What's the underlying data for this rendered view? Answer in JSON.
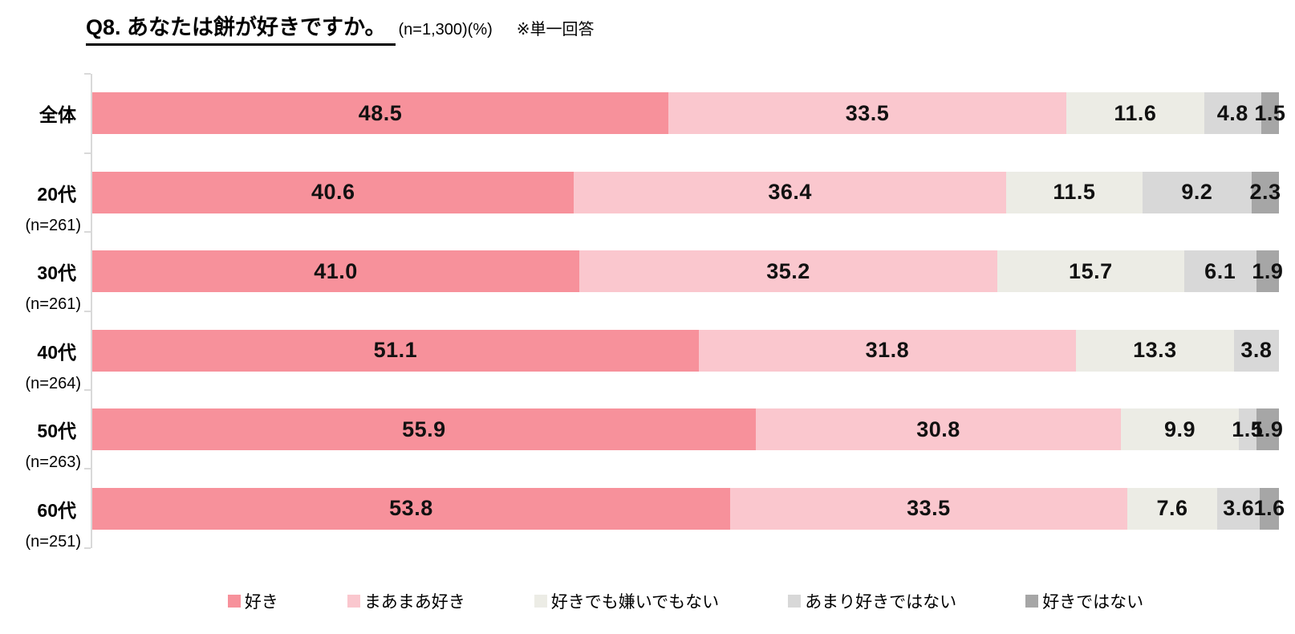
{
  "header": {
    "title": "Q8. あなたは餅が好きですか。",
    "sample": "(n=1,300)(%)",
    "note": "※単一回答"
  },
  "chart_data": {
    "type": "bar",
    "orientation": "horizontal",
    "stacked": true,
    "unit": "%",
    "xlim": [
      0,
      100
    ],
    "grid": false,
    "legend_position": "bottom",
    "value_labels": "centered on each segment, one decimal, hidden when 0",
    "axis_color": "#D9D9D9",
    "categories": [
      {
        "label": "全体",
        "n": ""
      },
      {
        "label": "20代",
        "n": "(n=261)"
      },
      {
        "label": "30代",
        "n": "(n=261)"
      },
      {
        "label": "40代",
        "n": "(n=264)"
      },
      {
        "label": "50代",
        "n": "(n=263)"
      },
      {
        "label": "60代",
        "n": "(n=251)"
      }
    ],
    "series": [
      {
        "name": "好き",
        "color": "#F7919B",
        "values": [
          48.5,
          40.6,
          41.0,
          51.1,
          55.9,
          53.8
        ]
      },
      {
        "name": "まあまあ好き",
        "color": "#FAC7CE",
        "values": [
          33.5,
          36.4,
          35.2,
          31.8,
          30.8,
          33.5
        ]
      },
      {
        "name": "好きでも嫌いでもない",
        "color": "#ECECE5",
        "values": [
          11.6,
          11.5,
          15.7,
          13.3,
          9.9,
          7.6
        ]
      },
      {
        "name": "あまり好きではない",
        "color": "#D8D8D8",
        "values": [
          4.8,
          9.2,
          6.1,
          3.8,
          1.5,
          3.6
        ]
      },
      {
        "name": "好きではない",
        "color": "#A6A6A6",
        "values": [
          1.5,
          2.3,
          1.9,
          0.0,
          1.9,
          1.6
        ]
      }
    ]
  }
}
